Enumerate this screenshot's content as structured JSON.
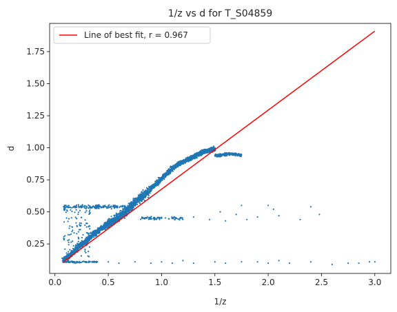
{
  "chart_data": {
    "type": "scatter",
    "title": "1/z vs d for T_S04859",
    "xlabel": "1/z",
    "ylabel": "d",
    "xlim": [
      -0.05,
      3.15
    ],
    "ylim": [
      0.02,
      1.97
    ],
    "xticks": [
      0.0,
      0.5,
      1.0,
      1.5,
      2.0,
      2.5,
      3.0
    ],
    "xtick_labels": [
      "0.0",
      "0.5",
      "1.0",
      "1.5",
      "2.0",
      "2.5",
      "3.0"
    ],
    "yticks": [
      0.25,
      0.5,
      0.75,
      1.0,
      1.25,
      1.5,
      1.75
    ],
    "ytick_labels": [
      "0.25",
      "0.50",
      "0.75",
      "1.00",
      "1.25",
      "1.50",
      "1.75"
    ],
    "grid": false,
    "legend": {
      "position": "top-left",
      "entries": [
        {
          "label": "Line of best fit, r = 0.967",
          "color": "#ff0000",
          "kind": "line"
        }
      ]
    },
    "series": [
      {
        "kind": "scatter",
        "color": "#1f77b4",
        "main_trend": [
          [
            0.08,
            0.12
          ],
          [
            0.12,
            0.15
          ],
          [
            0.16,
            0.18
          ],
          [
            0.2,
            0.21
          ],
          [
            0.25,
            0.25
          ],
          [
            0.3,
            0.28
          ],
          [
            0.35,
            0.32
          ],
          [
            0.4,
            0.35
          ],
          [
            0.45,
            0.38
          ],
          [
            0.5,
            0.41
          ],
          [
            0.55,
            0.43
          ],
          [
            0.6,
            0.46
          ],
          [
            0.65,
            0.49
          ],
          [
            0.7,
            0.53
          ],
          [
            0.75,
            0.57
          ],
          [
            0.8,
            0.61
          ],
          [
            0.85,
            0.64
          ],
          [
            0.9,
            0.68
          ],
          [
            0.95,
            0.72
          ],
          [
            1.0,
            0.76
          ],
          [
            1.05,
            0.8
          ],
          [
            1.1,
            0.84
          ],
          [
            1.15,
            0.87
          ],
          [
            1.2,
            0.89
          ],
          [
            1.25,
            0.91
          ],
          [
            1.3,
            0.93
          ],
          [
            1.35,
            0.95
          ],
          [
            1.4,
            0.97
          ],
          [
            1.45,
            0.98
          ],
          [
            1.5,
            0.99
          ]
        ],
        "tail": [
          [
            1.5,
            0.94
          ],
          [
            1.55,
            0.94
          ],
          [
            1.6,
            0.95
          ],
          [
            1.65,
            0.95
          ],
          [
            1.7,
            0.95
          ],
          [
            1.75,
            0.94
          ]
        ],
        "upper_band_y": 0.54,
        "upper_band_x": [
          0.08,
          0.75
        ],
        "mid_band_y": 0.45,
        "mid_band_x": [
          0.8,
          1.2
        ],
        "bottom_band_y": 0.11,
        "bottom_band_x": [
          0.08,
          0.4
        ],
        "outliers": [
          [
            1.3,
            0.46
          ],
          [
            1.45,
            0.44
          ],
          [
            1.55,
            0.5
          ],
          [
            1.6,
            0.43
          ],
          [
            1.7,
            0.48
          ],
          [
            1.75,
            0.55
          ],
          [
            1.8,
            0.44
          ],
          [
            2.0,
            0.55
          ],
          [
            2.1,
            0.47
          ],
          [
            2.3,
            0.44
          ],
          [
            2.4,
            0.54
          ],
          [
            2.48,
            0.48
          ],
          [
            2.05,
            0.52
          ],
          [
            1.9,
            0.46
          ],
          [
            0.5,
            0.11
          ],
          [
            0.6,
            0.1
          ],
          [
            0.75,
            0.11
          ],
          [
            0.9,
            0.1
          ],
          [
            1.0,
            0.11
          ],
          [
            1.1,
            0.1
          ],
          [
            1.2,
            0.12
          ],
          [
            1.3,
            0.1
          ],
          [
            1.5,
            0.11
          ],
          [
            1.6,
            0.1
          ],
          [
            1.75,
            0.11
          ],
          [
            1.9,
            0.11
          ],
          [
            2.0,
            0.1
          ],
          [
            2.1,
            0.12
          ],
          [
            2.2,
            0.1
          ],
          [
            2.4,
            0.11
          ],
          [
            2.6,
            0.09
          ],
          [
            2.75,
            0.1
          ],
          [
            2.85,
            0.1
          ],
          [
            2.95,
            0.11
          ],
          [
            3.0,
            0.11
          ]
        ]
      },
      {
        "name": "Line of best fit, r = 0.967",
        "kind": "line",
        "color": "#ff0000",
        "x": [
          0.08,
          3.0
        ],
        "y": [
          0.11,
          1.91
        ]
      }
    ]
  }
}
